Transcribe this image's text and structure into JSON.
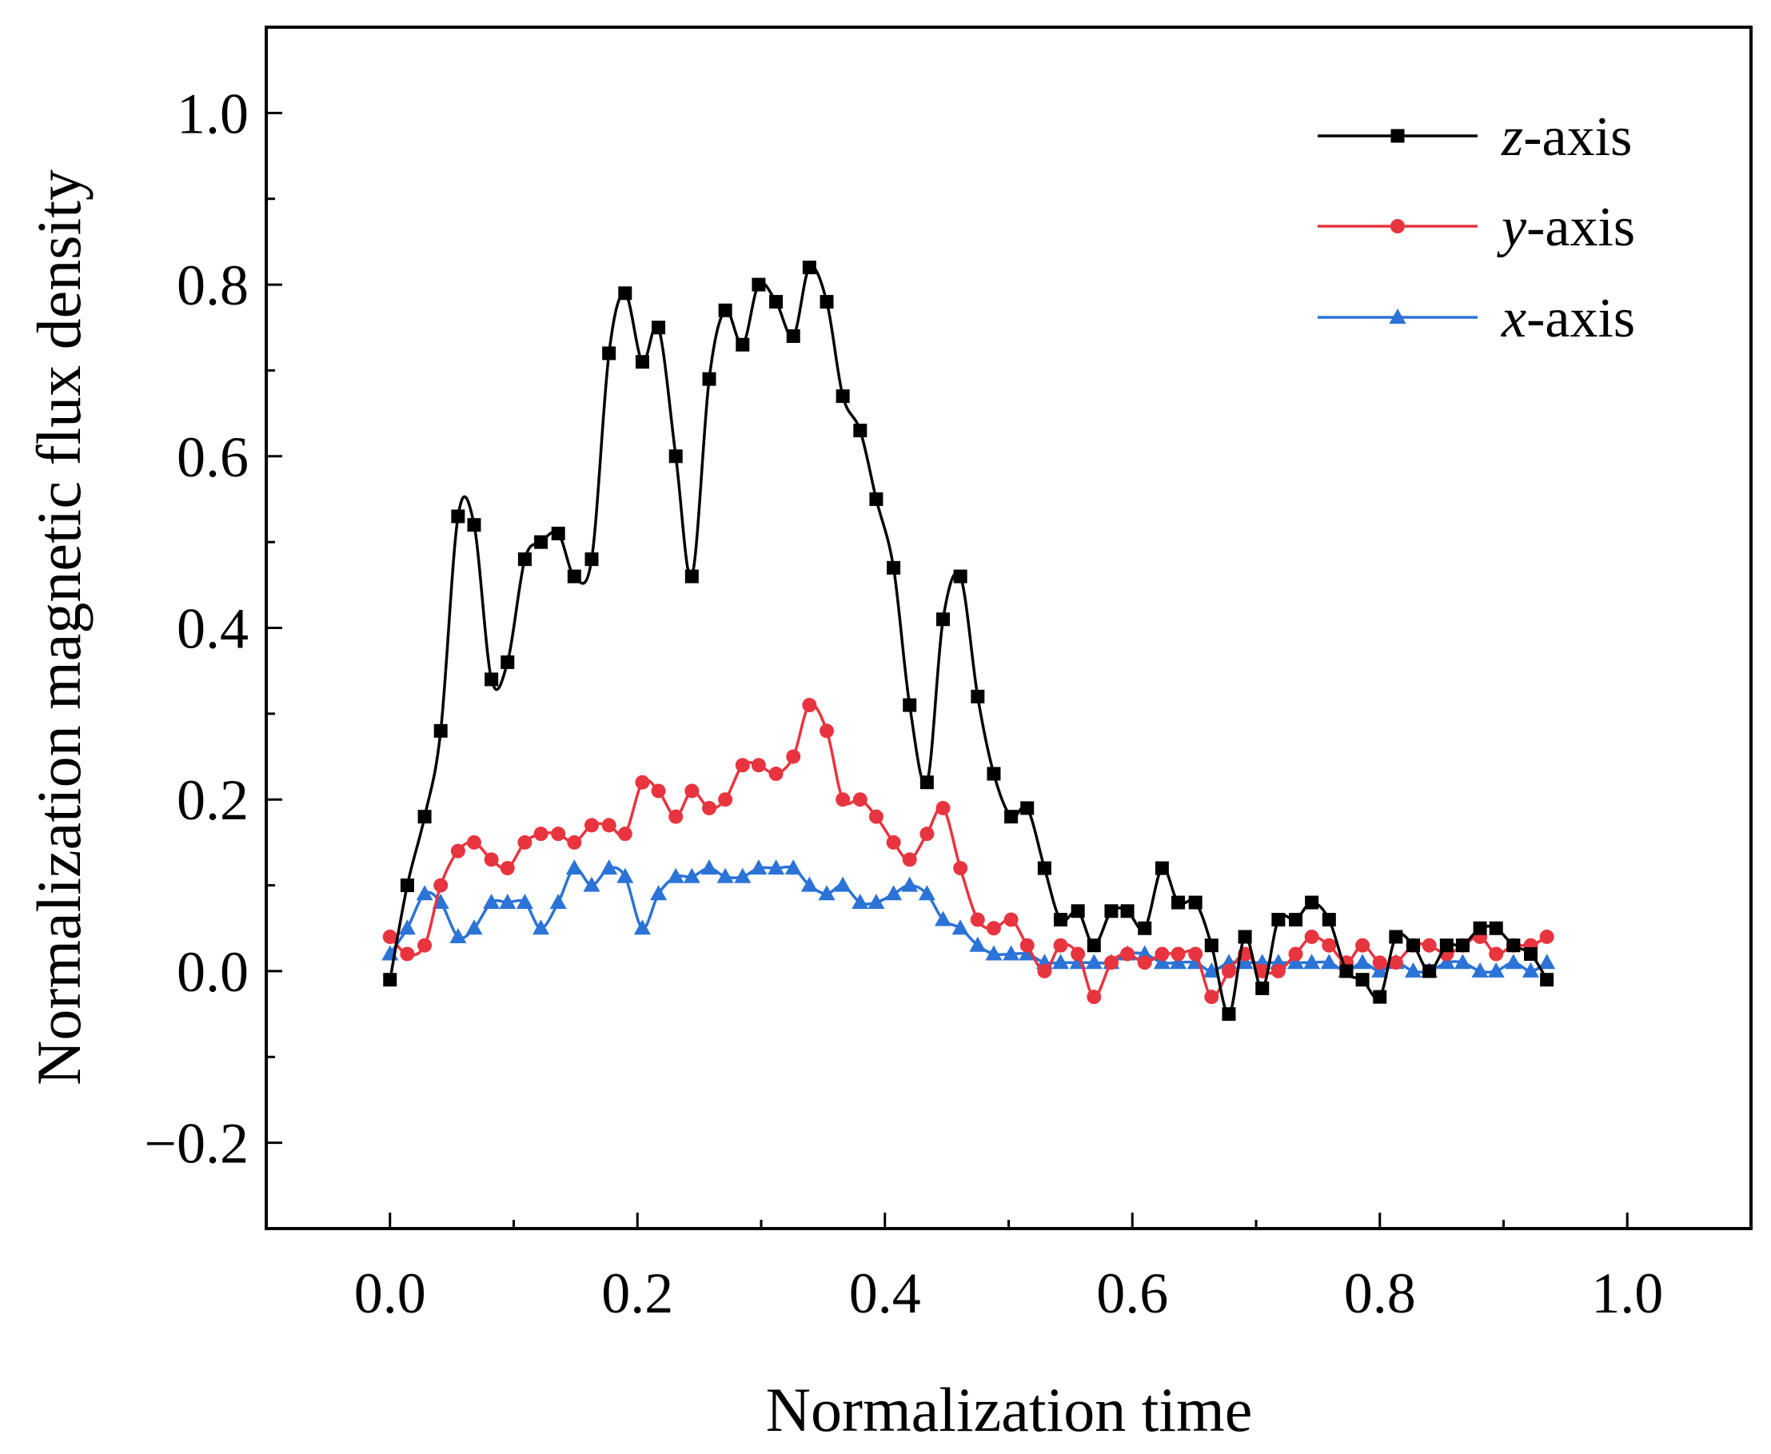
{
  "chart_data": {
    "type": "line",
    "title": "",
    "xlabel": "Normalization time",
    "ylabel": "Normalization magnetic flux density",
    "xlim": [
      -0.1,
      1.1
    ],
    "ylim": [
      -0.3,
      1.1
    ],
    "xticks": [
      0.0,
      0.2,
      0.4,
      0.6,
      0.8,
      1.0
    ],
    "xtick_labels": [
      "0.0",
      "0.2",
      "0.4",
      "0.6",
      "0.8",
      "1.0"
    ],
    "yticks": [
      -0.2,
      0.0,
      0.2,
      0.4,
      0.6,
      0.8,
      1.0
    ],
    "ytick_labels": [
      "−0.2",
      "0.0",
      "0.2",
      "0.4",
      "0.6",
      "0.8",
      "1.0"
    ],
    "grid": false,
    "legend_position": "top-right",
    "series": [
      {
        "name": "z-axis",
        "axis_letter": "z",
        "suffix": "-axis",
        "color": "#000000",
        "marker": "square",
        "x": [
          0.0,
          0.014,
          0.028,
          0.041,
          0.055,
          0.068,
          0.082,
          0.095,
          0.109,
          0.122,
          0.136,
          0.149,
          0.163,
          0.177,
          0.19,
          0.204,
          0.217,
          0.231,
          0.244,
          0.258,
          0.271,
          0.285,
          0.298,
          0.312,
          0.326,
          0.339,
          0.353,
          0.366,
          0.38,
          0.393,
          0.407,
          0.42,
          0.434,
          0.447,
          0.461,
          0.475,
          0.488,
          0.502,
          0.515,
          0.529,
          0.542,
          0.556,
          0.569,
          0.583,
          0.596,
          0.61,
          0.624,
          0.637,
          0.651,
          0.664,
          0.678,
          0.691,
          0.705,
          0.718,
          0.732,
          0.745,
          0.759,
          0.773,
          0.786,
          0.8,
          0.813,
          0.827,
          0.84,
          0.854,
          0.867,
          0.881,
          0.894,
          0.908,
          0.922,
          0.935
        ],
        "y": [
          -0.01,
          0.1,
          0.18,
          0.28,
          0.53,
          0.52,
          0.34,
          0.36,
          0.48,
          0.5,
          0.51,
          0.46,
          0.48,
          0.72,
          0.79,
          0.71,
          0.75,
          0.6,
          0.46,
          0.69,
          0.77,
          0.73,
          0.8,
          0.78,
          0.74,
          0.82,
          0.78,
          0.67,
          0.63,
          0.55,
          0.47,
          0.31,
          0.22,
          0.41,
          0.46,
          0.32,
          0.23,
          0.18,
          0.19,
          0.12,
          0.06,
          0.07,
          0.03,
          0.07,
          0.07,
          0.05,
          0.12,
          0.08,
          0.08,
          0.03,
          -0.05,
          0.04,
          -0.02,
          0.06,
          0.06,
          0.08,
          0.06,
          0.0,
          -0.01,
          -0.03,
          0.04,
          0.03,
          0.0,
          0.03,
          0.03,
          0.05,
          0.05,
          0.03,
          0.02,
          -0.01
        ]
      },
      {
        "name": "y-axis",
        "axis_letter": "y",
        "suffix": "-axis",
        "color": "#e8343f",
        "marker": "circle",
        "x": [
          0.0,
          0.014,
          0.028,
          0.041,
          0.055,
          0.068,
          0.082,
          0.095,
          0.109,
          0.122,
          0.136,
          0.149,
          0.163,
          0.177,
          0.19,
          0.204,
          0.217,
          0.231,
          0.244,
          0.258,
          0.271,
          0.285,
          0.298,
          0.312,
          0.326,
          0.339,
          0.353,
          0.366,
          0.38,
          0.393,
          0.407,
          0.42,
          0.434,
          0.447,
          0.461,
          0.475,
          0.488,
          0.502,
          0.515,
          0.529,
          0.542,
          0.556,
          0.569,
          0.583,
          0.596,
          0.61,
          0.624,
          0.637,
          0.651,
          0.664,
          0.678,
          0.691,
          0.705,
          0.718,
          0.732,
          0.745,
          0.759,
          0.773,
          0.786,
          0.8,
          0.813,
          0.827,
          0.84,
          0.854,
          0.867,
          0.881,
          0.894,
          0.908,
          0.922,
          0.935
        ],
        "y": [
          0.04,
          0.02,
          0.03,
          0.1,
          0.14,
          0.15,
          0.13,
          0.12,
          0.15,
          0.16,
          0.16,
          0.15,
          0.17,
          0.17,
          0.16,
          0.22,
          0.21,
          0.18,
          0.21,
          0.19,
          0.2,
          0.24,
          0.24,
          0.23,
          0.25,
          0.31,
          0.28,
          0.2,
          0.2,
          0.18,
          0.15,
          0.13,
          0.16,
          0.19,
          0.12,
          0.06,
          0.05,
          0.06,
          0.03,
          0.0,
          0.03,
          0.02,
          -0.03,
          0.01,
          0.02,
          0.01,
          0.02,
          0.02,
          0.02,
          -0.03,
          0.0,
          0.02,
          0.0,
          0.0,
          0.02,
          0.04,
          0.03,
          0.01,
          0.03,
          0.01,
          0.01,
          0.03,
          0.03,
          0.02,
          0.03,
          0.04,
          0.02,
          0.03,
          0.03,
          0.04
        ]
      },
      {
        "name": "x-axis",
        "axis_letter": "x",
        "suffix": "-axis",
        "color": "#2b73d6",
        "marker": "triangle",
        "x": [
          0.0,
          0.014,
          0.028,
          0.041,
          0.055,
          0.068,
          0.082,
          0.095,
          0.109,
          0.122,
          0.136,
          0.149,
          0.163,
          0.177,
          0.19,
          0.204,
          0.217,
          0.231,
          0.244,
          0.258,
          0.271,
          0.285,
          0.298,
          0.312,
          0.326,
          0.339,
          0.353,
          0.366,
          0.38,
          0.393,
          0.407,
          0.42,
          0.434,
          0.447,
          0.461,
          0.475,
          0.488,
          0.502,
          0.515,
          0.529,
          0.542,
          0.556,
          0.569,
          0.583,
          0.596,
          0.61,
          0.624,
          0.637,
          0.651,
          0.664,
          0.678,
          0.691,
          0.705,
          0.718,
          0.732,
          0.745,
          0.759,
          0.773,
          0.786,
          0.8,
          0.813,
          0.827,
          0.84,
          0.854,
          0.867,
          0.881,
          0.894,
          0.908,
          0.922,
          0.935
        ],
        "y": [
          0.02,
          0.05,
          0.09,
          0.08,
          0.04,
          0.05,
          0.08,
          0.08,
          0.08,
          0.05,
          0.08,
          0.12,
          0.1,
          0.12,
          0.11,
          0.05,
          0.09,
          0.11,
          0.11,
          0.12,
          0.11,
          0.11,
          0.12,
          0.12,
          0.12,
          0.1,
          0.09,
          0.1,
          0.08,
          0.08,
          0.09,
          0.1,
          0.09,
          0.06,
          0.05,
          0.03,
          0.02,
          0.02,
          0.02,
          0.01,
          0.01,
          0.01,
          0.01,
          0.01,
          0.02,
          0.02,
          0.01,
          0.01,
          0.01,
          0.0,
          0.01,
          0.01,
          0.01,
          0.01,
          0.01,
          0.01,
          0.01,
          0.0,
          0.01,
          0.0,
          0.01,
          0.0,
          0.0,
          0.01,
          0.01,
          0.0,
          0.0,
          0.01,
          0.0,
          0.01
        ]
      }
    ]
  }
}
